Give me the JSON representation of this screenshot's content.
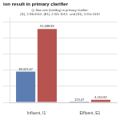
{
  "chart_data": {
    "type": "bar",
    "title": "ion result in primary clarifier",
    "subtitle": [
      "Q, flow rate (ton/day) in primary clarifier:",
      "(I1), 2.33x1012; (E1), 2.32x 1012;  and (S1), 5.55x 1010"
    ],
    "categories": [
      "Influent, I1",
      "Effluent, E1"
    ],
    "series": [
      {
        "color": "#5B7DB1",
        "values": [
          38323.47,
          123.47
        ],
        "value_labels": [
          "38,323.47",
          "123.47"
        ]
      },
      {
        "color": "#B85450",
        "values": [
          91488.89,
          3161.82
        ],
        "value_labels": [
          "91,488.89",
          "3,161.82"
        ]
      }
    ],
    "ylim": [
      0,
      105000
    ],
    "yticks": [
      0,
      20000,
      40000,
      60000,
      80000,
      100000
    ],
    "grid": true,
    "tick_labels": "x",
    "data_labels": true
  }
}
